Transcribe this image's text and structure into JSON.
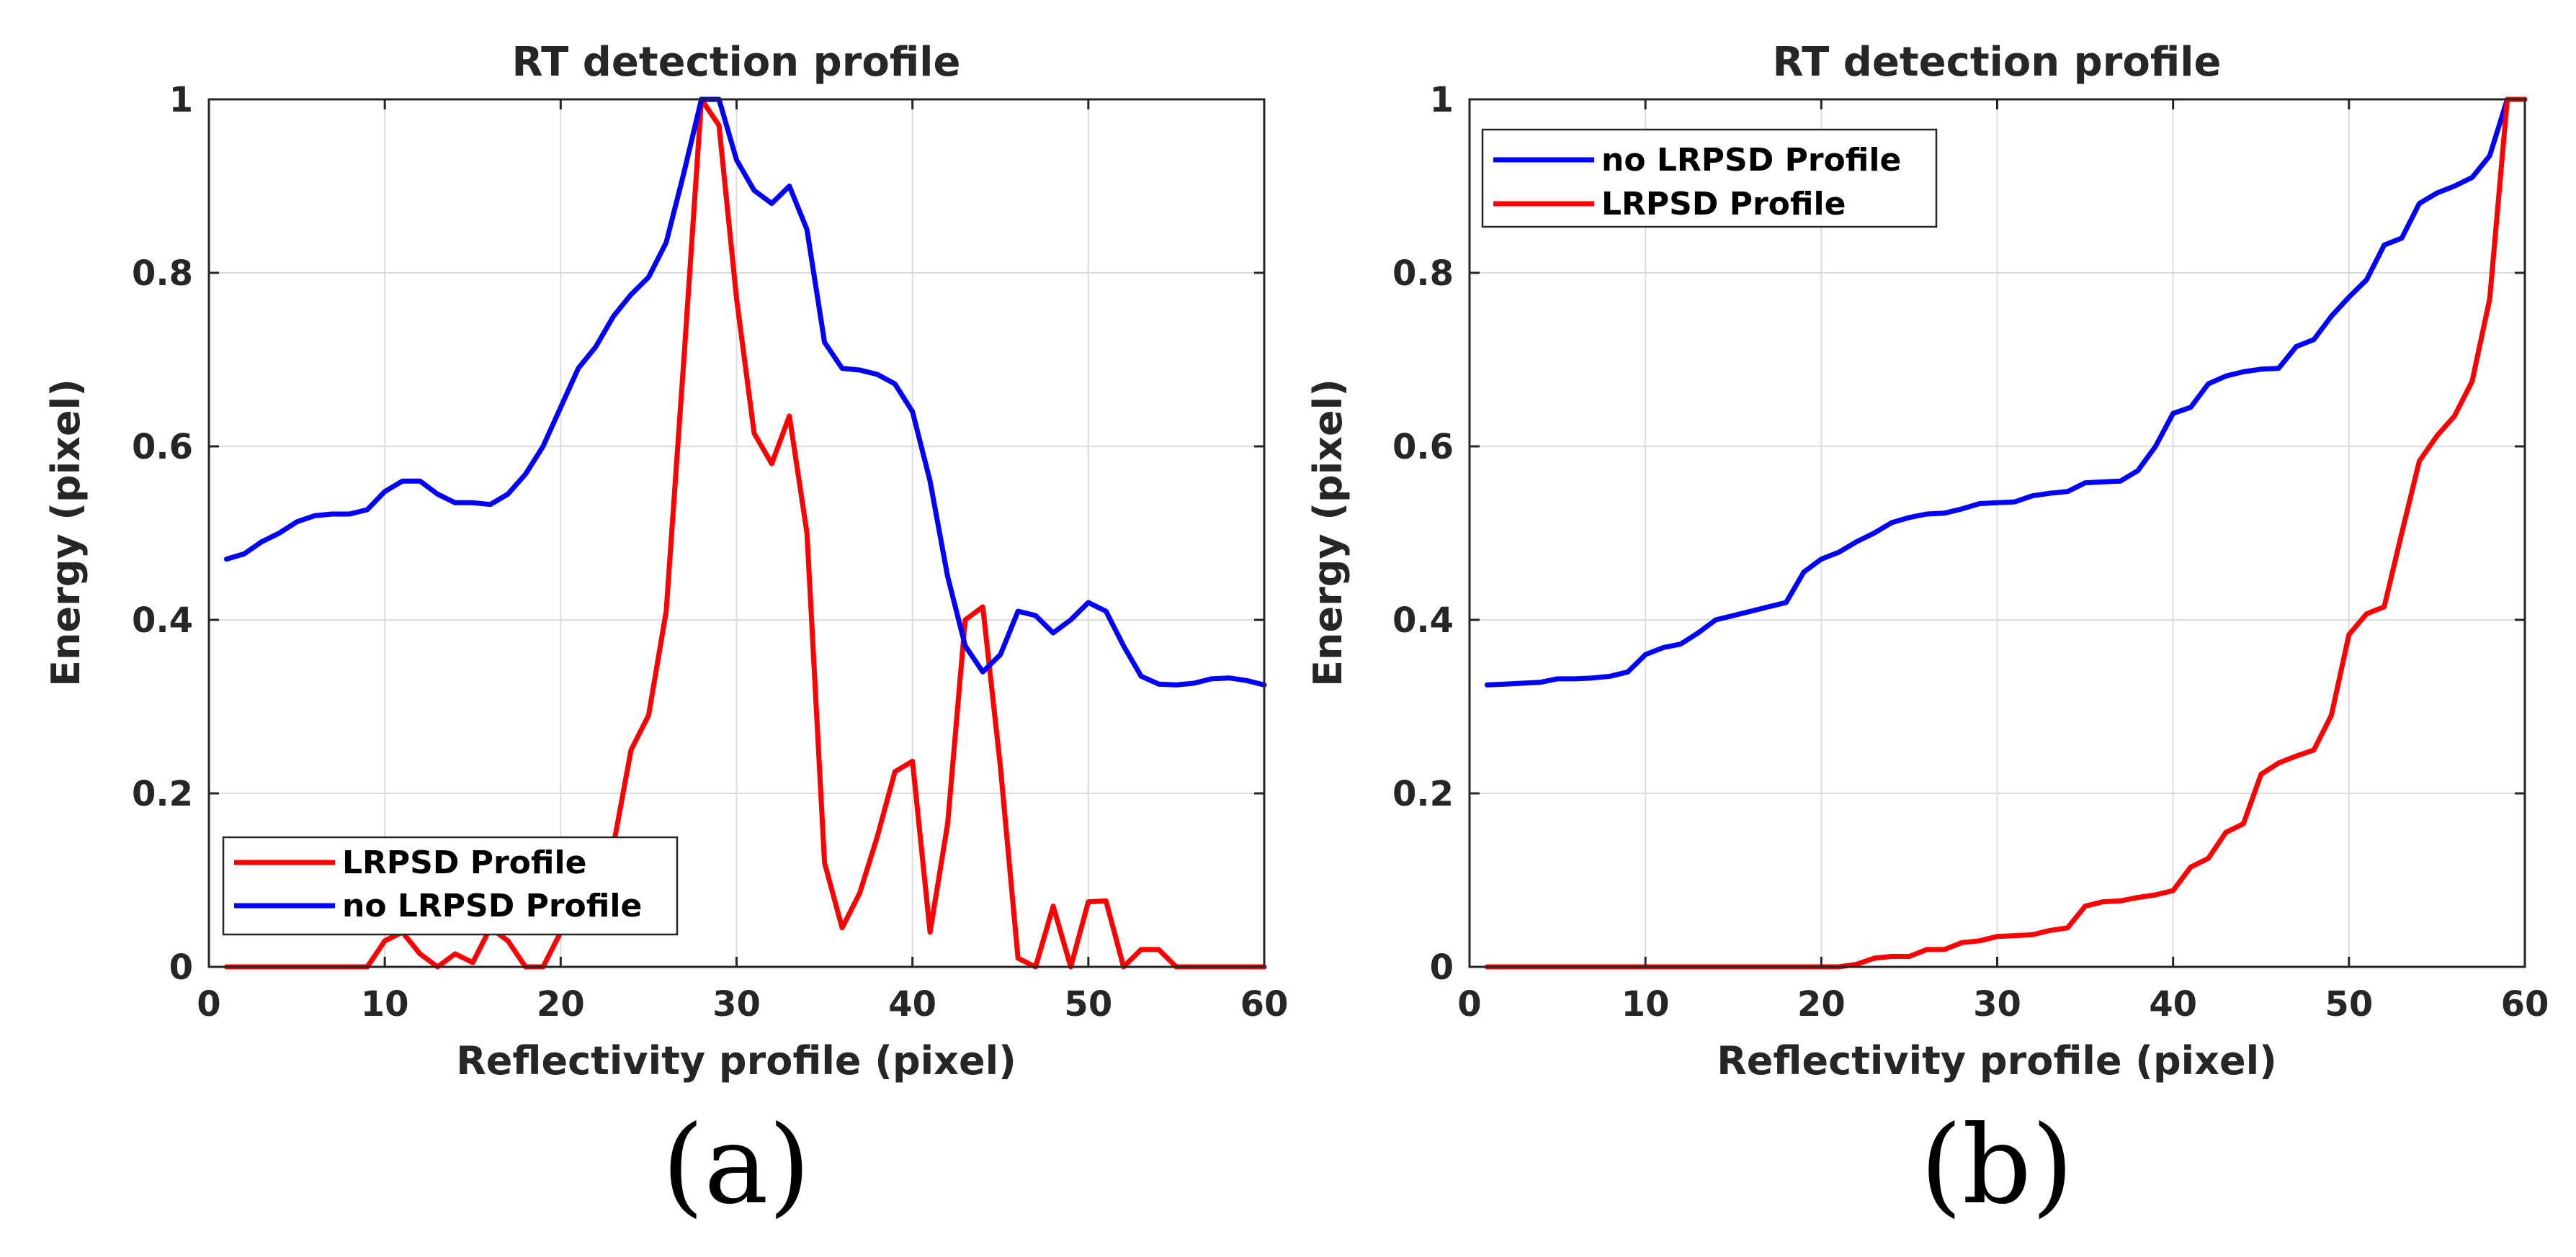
{
  "chart_data": [
    {
      "type": "line",
      "panel": "(a)",
      "title": "RT detection profile",
      "xlabel": "Reflectivity profile (pixel)",
      "ylabel": "Energy (pixel)",
      "xlim": [
        0,
        60
      ],
      "ylim": [
        0,
        1
      ],
      "xticks": [
        "0",
        "10",
        "20",
        "30",
        "40",
        "50",
        "60"
      ],
      "yticks": [
        "0",
        "0.2",
        "0.4",
        "0.6",
        "0.8",
        "1"
      ],
      "grid": true,
      "legend_position": "bottom-left",
      "series": [
        {
          "name": "LRPSD Profile",
          "color": "#ff0000",
          "x": [
            1,
            2,
            3,
            4,
            5,
            6,
            7,
            8,
            9,
            10,
            11,
            12,
            13,
            14,
            15,
            16,
            17,
            18,
            19,
            20,
            21,
            22,
            23,
            24,
            25,
            26,
            27,
            28,
            29,
            30,
            31,
            32,
            33,
            34,
            35,
            36,
            37,
            38,
            39,
            40,
            41,
            42,
            43,
            44,
            45,
            46,
            47,
            48,
            49,
            50,
            51,
            52,
            53,
            54,
            55,
            56,
            57,
            58,
            59,
            60
          ],
          "y": [
            0,
            0,
            0,
            0,
            0,
            0,
            0,
            0,
            0,
            0.03,
            0.04,
            0.015,
            0,
            0.015,
            0.005,
            0.045,
            0.03,
            0,
            0,
            0.04,
            0.04,
            0.07,
            0.14,
            0.25,
            0.29,
            0.41,
            0.7,
            1,
            0.97,
            0.77,
            0.615,
            0.58,
            0.635,
            0.5,
            0.12,
            0.045,
            0.085,
            0.15,
            0.225,
            0.237,
            0.04,
            0.165,
            0.4,
            0.415,
            0.23,
            0.01,
            0,
            0.07,
            0,
            0.075,
            0.076,
            0,
            0.02,
            0.02,
            0,
            0,
            0,
            0,
            0,
            0
          ]
        },
        {
          "name": "no LRPSD Profile",
          "color": "#0000ff",
          "x": [
            1,
            2,
            3,
            4,
            5,
            6,
            7,
            8,
            9,
            10,
            11,
            12,
            13,
            14,
            15,
            16,
            17,
            18,
            19,
            20,
            21,
            22,
            23,
            24,
            25,
            26,
            27,
            28,
            29,
            30,
            31,
            32,
            33,
            34,
            35,
            36,
            37,
            38,
            39,
            40,
            41,
            42,
            43,
            44,
            45,
            46,
            47,
            48,
            49,
            50,
            51,
            52,
            53,
            54,
            55,
            56,
            57,
            58,
            59,
            60
          ],
          "y": [
            0.47,
            0.476,
            0.49,
            0.5,
            0.513,
            0.52,
            0.522,
            0.522,
            0.527,
            0.548,
            0.56,
            0.56,
            0.545,
            0.535,
            0.535,
            0.533,
            0.545,
            0.568,
            0.6,
            0.645,
            0.69,
            0.715,
            0.75,
            0.775,
            0.795,
            0.835,
            0.915,
            1,
            1,
            0.93,
            0.895,
            0.88,
            0.9,
            0.85,
            0.72,
            0.69,
            0.688,
            0.683,
            0.672,
            0.64,
            0.56,
            0.45,
            0.37,
            0.34,
            0.36,
            0.41,
            0.405,
            0.385,
            0.4,
            0.42,
            0.41,
            0.37,
            0.335,
            0.326,
            0.325,
            0.327,
            0.332,
            0.333,
            0.33,
            0.325
          ]
        }
      ]
    },
    {
      "type": "line",
      "panel": "(b)",
      "title": "RT detection profile",
      "xlabel": "Reflectivity profile (pixel)",
      "ylabel": "Energy (pixel)",
      "xlim": [
        0,
        60
      ],
      "ylim": [
        0,
        1
      ],
      "xticks": [
        "0",
        "10",
        "20",
        "30",
        "40",
        "50",
        "60"
      ],
      "yticks": [
        "0",
        "0.2",
        "0.4",
        "0.6",
        "0.8",
        "1"
      ],
      "grid": true,
      "legend_position": "top-left",
      "series": [
        {
          "name": "no LRPSD Profile",
          "color": "#0000ff",
          "x": [
            1,
            2,
            3,
            4,
            5,
            6,
            7,
            8,
            9,
            10,
            11,
            12,
            13,
            14,
            15,
            16,
            17,
            18,
            19,
            20,
            21,
            22,
            23,
            24,
            25,
            26,
            27,
            28,
            29,
            30,
            31,
            32,
            33,
            34,
            35,
            36,
            37,
            38,
            39,
            40,
            41,
            42,
            43,
            44,
            45,
            46,
            47,
            48,
            49,
            50,
            51,
            52,
            53,
            54,
            55,
            56,
            57,
            58,
            59,
            60
          ],
          "y": [
            0.325,
            0.326,
            0.327,
            0.328,
            0.332,
            0.332,
            0.333,
            0.335,
            0.34,
            0.36,
            0.368,
            0.372,
            0.385,
            0.4,
            0.405,
            0.41,
            0.415,
            0.42,
            0.455,
            0.47,
            0.478,
            0.49,
            0.5,
            0.512,
            0.518,
            0.522,
            0.523,
            0.528,
            0.534,
            0.535,
            0.536,
            0.543,
            0.546,
            0.548,
            0.558,
            0.559,
            0.56,
            0.572,
            0.6,
            0.638,
            0.645,
            0.672,
            0.681,
            0.686,
            0.689,
            0.69,
            0.715,
            0.723,
            0.75,
            0.772,
            0.792,
            0.832,
            0.84,
            0.88,
            0.892,
            0.9,
            0.91,
            0.935,
            1,
            1
          ]
        },
        {
          "name": "LRPSD Profile",
          "color": "#ff0000",
          "x": [
            1,
            2,
            3,
            4,
            5,
            6,
            7,
            8,
            9,
            10,
            11,
            12,
            13,
            14,
            15,
            16,
            17,
            18,
            19,
            20,
            21,
            22,
            23,
            24,
            25,
            26,
            27,
            28,
            29,
            30,
            31,
            32,
            33,
            34,
            35,
            36,
            37,
            38,
            39,
            40,
            41,
            42,
            43,
            44,
            45,
            46,
            47,
            48,
            49,
            50,
            51,
            52,
            53,
            54,
            55,
            56,
            57,
            58,
            59,
            60
          ],
          "y": [
            0,
            0,
            0,
            0,
            0,
            0,
            0,
            0,
            0,
            0,
            0,
            0,
            0,
            0,
            0,
            0,
            0,
            0,
            0,
            0,
            0,
            0.003,
            0.01,
            0.012,
            0.012,
            0.02,
            0.02,
            0.028,
            0.03,
            0.035,
            0.036,
            0.037,
            0.042,
            0.045,
            0.07,
            0.075,
            0.076,
            0.08,
            0.083,
            0.088,
            0.115,
            0.125,
            0.155,
            0.165,
            0.222,
            0.235,
            0.243,
            0.25,
            0.29,
            0.383,
            0.407,
            0.415,
            0.5,
            0.583,
            0.612,
            0.635,
            0.675,
            0.77,
            1,
            1
          ]
        }
      ]
    }
  ],
  "captions": [
    "(a)",
    "(b)"
  ]
}
